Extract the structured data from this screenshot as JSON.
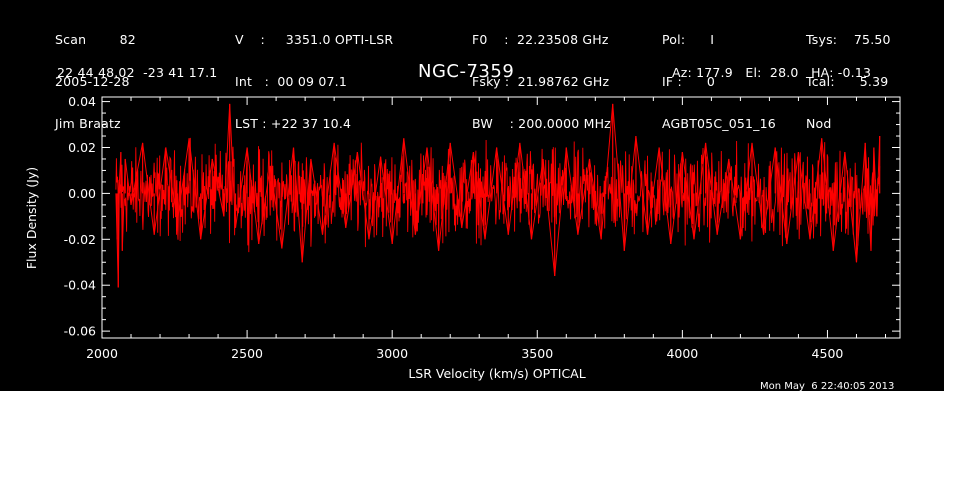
{
  "header": {
    "col1": [
      "Scan        82",
      "2005-12-28",
      "Jim Braatz"
    ],
    "col2": [
      "V    :     3351.0 OPTI-LSR",
      "Int   :  00 09 07.1",
      "LST : +22 37 10.4"
    ],
    "col3": [
      "F0    :  22.23508 GHz",
      "Fsky :  21.98762 GHz",
      "BW    : 200.0000 MHz"
    ],
    "col4": [
      "Pol:      I",
      "IF :      0",
      "AGBT05C_051_16"
    ],
    "col5": [
      "Tsys:    75.50",
      "Tcal:      5.39",
      "Nod"
    ],
    "coords": "22 44 48.02  -23 41 17.1",
    "azel": "Az: 177.9   El:  28.0   HA: -0.13"
  },
  "timestamp": "Mon May  6 22:40:05 2013",
  "chart_data": {
    "type": "line",
    "title": "NGC-7359",
    "xlabel": "LSR Velocity (km/s) OPTICAL",
    "ylabel": "Flux Density (Jy)",
    "xlim": [
      2000,
      4750
    ],
    "ylim": [
      -0.063,
      0.042
    ],
    "xticks": [
      2000,
      2500,
      3000,
      3500,
      4000,
      4500
    ],
    "xtick_labels": [
      "2000",
      "2500",
      "3000",
      "3500",
      "4000",
      "4500"
    ],
    "yticks": [
      -0.06,
      -0.04,
      -0.02,
      0.0,
      0.02,
      0.04
    ],
    "ytick_labels": [
      "-0.06",
      "-0.04",
      "-0.02",
      "0.00",
      "0.02",
      "0.04"
    ],
    "series": [
      {
        "color": "#ff0000",
        "x": [
          2048,
          2052,
          2056,
          2060,
          2065,
          2070,
          2080,
          2100,
          2140,
          2180,
          2220,
          2260,
          2300,
          2340,
          2380,
          2420,
          2440,
          2460,
          2500,
          2540,
          2580,
          2620,
          2660,
          2690,
          2720,
          2760,
          2800,
          2840,
          2880,
          2920,
          2960,
          3000,
          3040,
          3080,
          3120,
          3160,
          3200,
          3240,
          3280,
          3320,
          3360,
          3400,
          3440,
          3480,
          3520,
          3560,
          3600,
          3640,
          3680,
          3720,
          3760,
          3800,
          3840,
          3880,
          3920,
          3960,
          4000,
          4040,
          4080,
          4120,
          4160,
          4200,
          4240,
          4280,
          4320,
          4360,
          4400,
          4440,
          4480,
          4520,
          4560,
          4600,
          4630,
          4650,
          4660,
          4670,
          4680
        ],
        "y": [
          0.0,
          -0.02,
          -0.041,
          0.005,
          0.018,
          -0.025,
          0.015,
          -0.005,
          0.022,
          -0.018,
          0.02,
          -0.012,
          0.024,
          -0.02,
          0.015,
          -0.01,
          0.039,
          -0.015,
          0.02,
          -0.022,
          0.012,
          -0.024,
          0.02,
          -0.03,
          0.015,
          -0.018,
          0.022,
          -0.015,
          0.018,
          -0.02,
          0.016,
          -0.022,
          0.024,
          -0.018,
          0.02,
          -0.025,
          0.022,
          -0.015,
          0.018,
          -0.02,
          0.02,
          -0.018,
          0.022,
          -0.02,
          0.015,
          -0.036,
          0.02,
          -0.018,
          0.015,
          -0.02,
          0.039,
          -0.025,
          0.025,
          -0.018,
          0.02,
          -0.022,
          0.018,
          -0.02,
          0.022,
          -0.018,
          0.015,
          -0.02,
          0.022,
          -0.018,
          0.02,
          -0.022,
          0.018,
          -0.02,
          0.024,
          -0.025,
          0.018,
          -0.03,
          0.022,
          -0.025,
          0.02,
          -0.01,
          0.025
        ]
      }
    ]
  }
}
